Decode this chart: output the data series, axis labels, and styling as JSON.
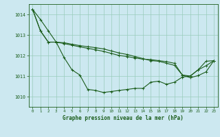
{
  "background_color": "#cce8f0",
  "grid_color": "#99ccbb",
  "line_color": "#1a5c1a",
  "title": "Graphe pression niveau de la mer (hPa)",
  "xlim": [
    -0.5,
    23.5
  ],
  "ylim": [
    1009.5,
    1014.5
  ],
  "yticks": [
    1010,
    1011,
    1012,
    1013,
    1014
  ],
  "xticks": [
    0,
    1,
    2,
    3,
    4,
    5,
    6,
    7,
    8,
    9,
    10,
    11,
    12,
    13,
    14,
    15,
    16,
    17,
    18,
    19,
    20,
    21,
    22,
    23
  ],
  "series1": [
    1014.25,
    1013.75,
    1013.2,
    1012.65,
    1011.9,
    1011.3,
    1011.05,
    1010.35,
    1010.3,
    1010.2,
    1010.25,
    1010.3,
    1010.35,
    1010.4,
    1010.4,
    1010.7,
    1010.75,
    1010.6,
    1010.7,
    1010.95,
    1011.0,
    1011.3,
    1011.5,
    1011.75
  ],
  "series2": [
    1014.25,
    1013.2,
    1012.65,
    1012.65,
    1012.62,
    1012.55,
    1012.48,
    1012.43,
    1012.38,
    1012.32,
    1012.22,
    1012.12,
    1012.05,
    1011.95,
    1011.85,
    1011.75,
    1011.72,
    1011.62,
    1011.52,
    1011.05,
    1011.0,
    1011.3,
    1011.72,
    1011.75
  ],
  "series3": [
    1014.25,
    1013.2,
    1012.65,
    1012.65,
    1012.58,
    1012.5,
    1012.42,
    1012.35,
    1012.28,
    1012.2,
    1012.1,
    1012.0,
    1011.95,
    1011.88,
    1011.82,
    1011.8,
    1011.75,
    1011.7,
    1011.62,
    1011.05,
    1010.92,
    1011.02,
    1011.2,
    1011.75
  ]
}
